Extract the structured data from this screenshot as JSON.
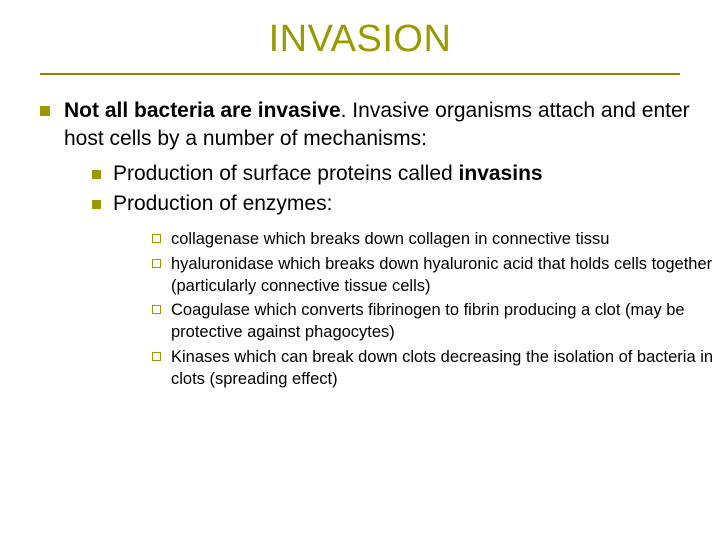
{
  "colors": {
    "title": "#9a9a00",
    "rule": "#8a8a00",
    "bullet_lvl1": "#9a9a00",
    "bullet_lvl2": "#9a9a00",
    "bullet_lvl3_border": "#9a9a00",
    "body_text": "#000000",
    "background": "#ffffff"
  },
  "typography": {
    "title_fontsize": 38,
    "body_fontsize": 21,
    "sub_fontsize": 16.5,
    "font_family": "Verdana"
  },
  "title": "INVASION",
  "main": {
    "lead_bold": "Not all bacteria are invasive",
    "lead_rest": ". Invasive organisms attach and enter host cells by a number of mechanisms:",
    "sub": [
      {
        "pre": "Production of surface proteins called ",
        "bold": "invasins",
        "post": ""
      },
      {
        "pre": "Production of enzymes:",
        "bold": "",
        "post": ""
      }
    ],
    "enzymes": [
      "collagenase which breaks down collagen in connective tissu",
      "hyaluronidase which breaks down hyaluronic acid that holds cells together (particularly connective tissue cells)",
      "Coagulase which converts fibrinogen to fibrin producing a clot (may be protective against phagocytes)",
      "Kinases which can break down clots decreasing the isolation of bacteria in clots (spreading effect)"
    ]
  }
}
